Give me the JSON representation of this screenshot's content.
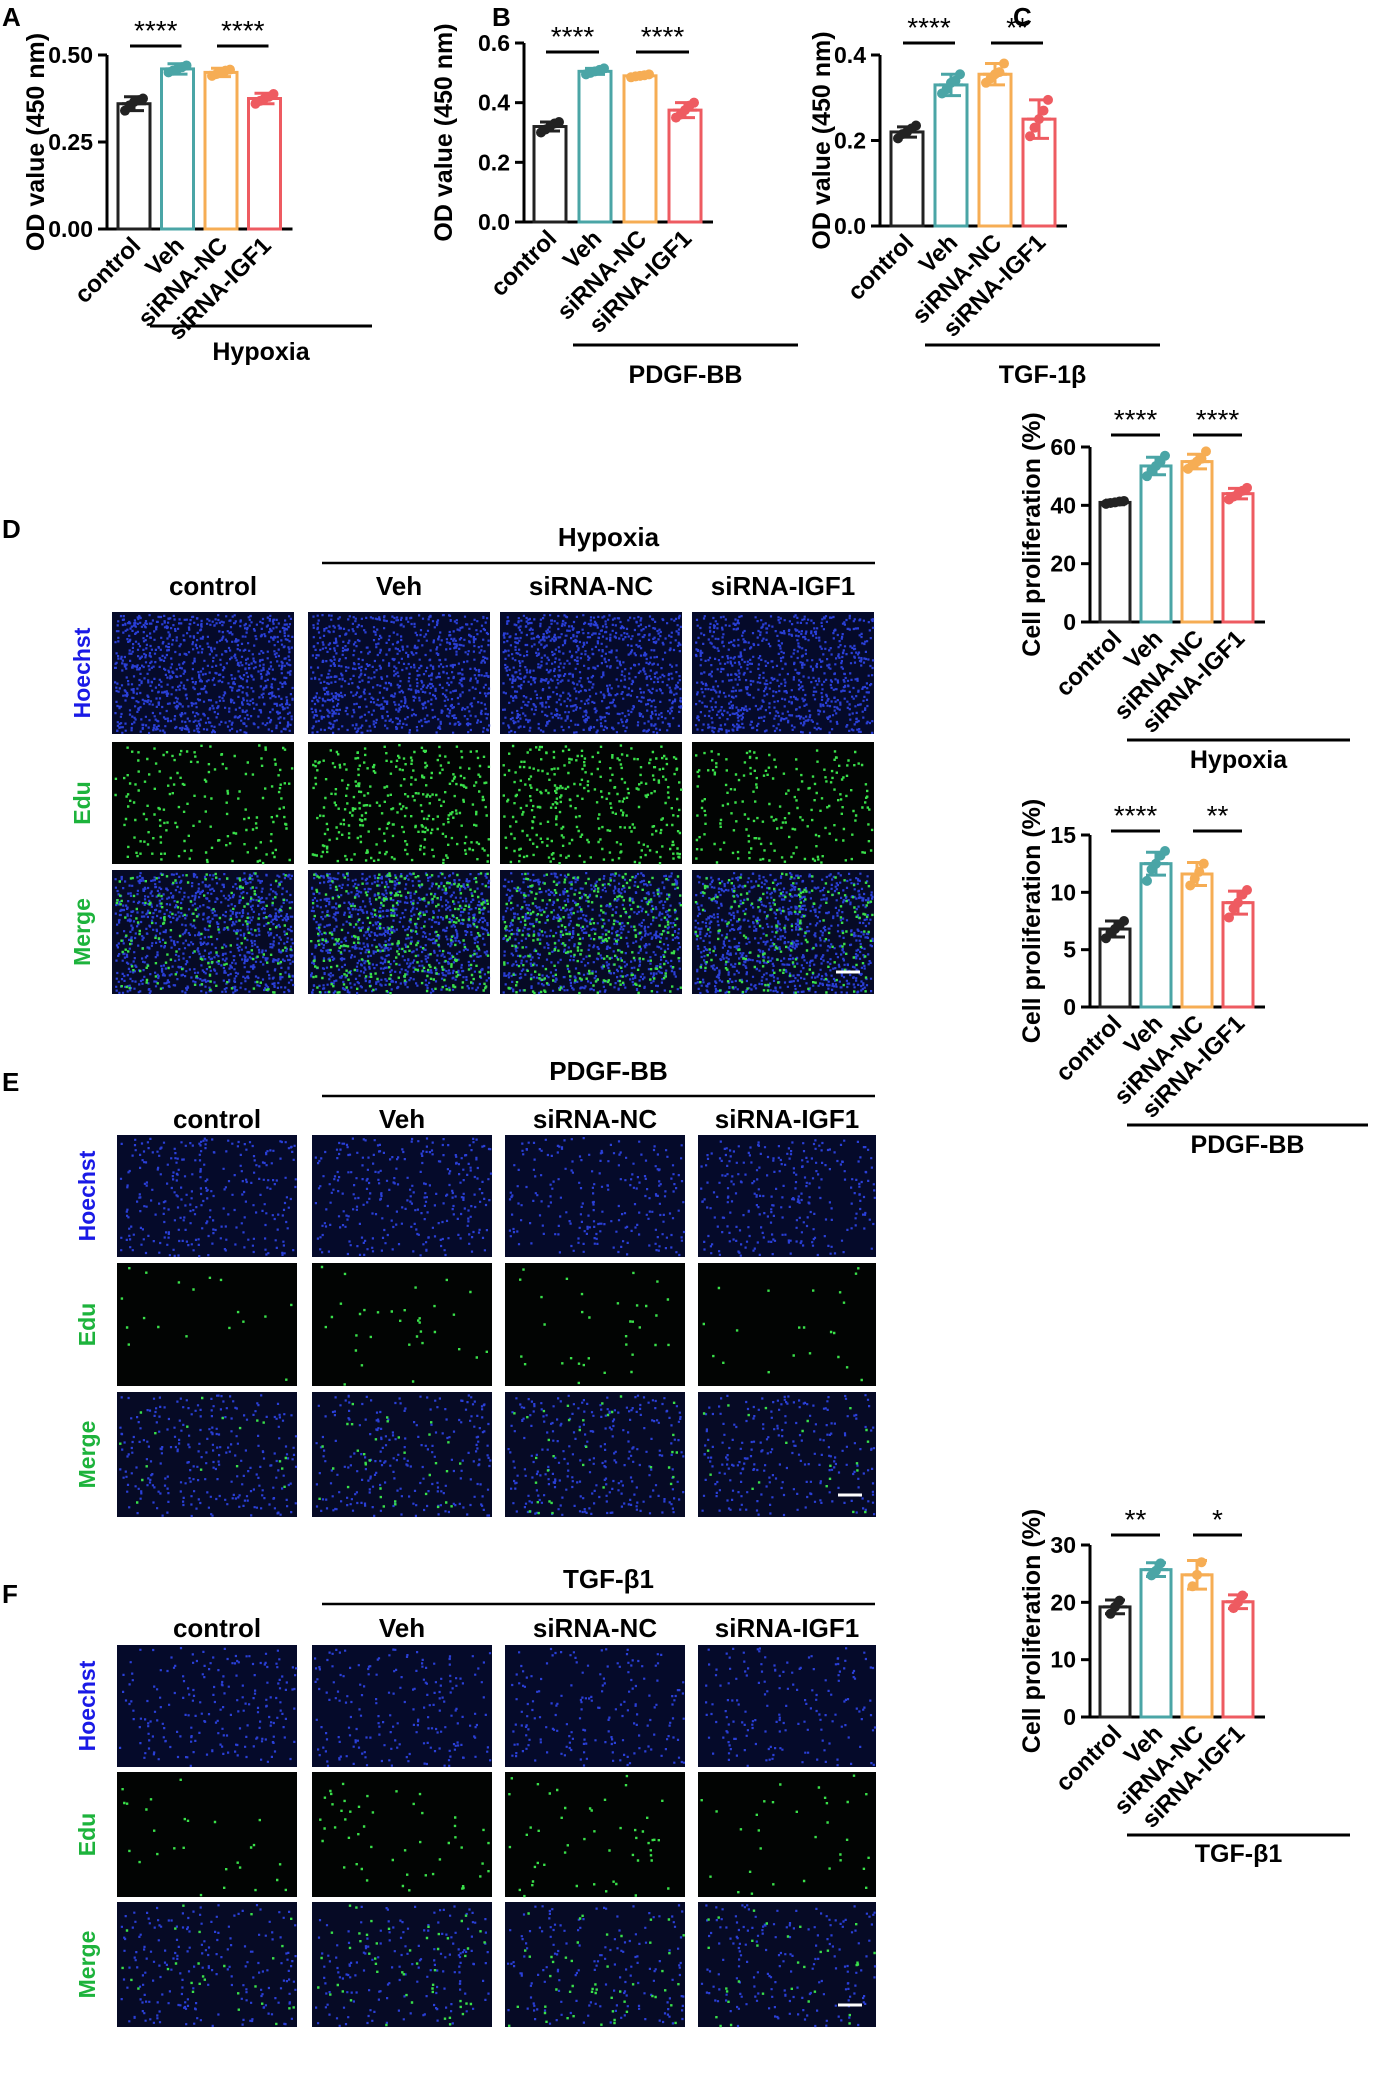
{
  "panels": {
    "A": "A",
    "B": "B",
    "C": "C",
    "D": "D",
    "E": "E",
    "F": "F"
  },
  "colors": {
    "control": "#222222",
    "Veh": "#4aa5a6",
    "siRNA-NC": "#f6ad54",
    "siRNA-IGF1": "#ee5b61",
    "hoechst_text": "#1a1ae6",
    "edu_text": "#1db33c"
  },
  "chart_data": [
    {
      "id": "A",
      "type": "bar",
      "categories": [
        "control",
        "Veh",
        "siRNA-NC",
        "siRNA-IGF1"
      ],
      "values": [
        0.36,
        0.46,
        0.45,
        0.375
      ],
      "errors": [
        0.02,
        0.015,
        0.012,
        0.015
      ],
      "points": [
        [
          0.34,
          0.355,
          0.365,
          0.37,
          0.375
        ],
        [
          0.45,
          0.455,
          0.46,
          0.465,
          0.47
        ],
        [
          0.44,
          0.445,
          0.45,
          0.455,
          0.458
        ],
        [
          0.36,
          0.368,
          0.375,
          0.38,
          0.388
        ]
      ],
      "ylabel": "OD value (450 nm)",
      "ylim": [
        0,
        0.5
      ],
      "yticks": [
        "0.00",
        "0.25",
        "0.50"
      ],
      "ytick_values": [
        0,
        0.25,
        0.5
      ],
      "group_label": "Hypoxia",
      "significance": [
        {
          "from": 0,
          "to": 1,
          "label": "****"
        },
        {
          "from": 2,
          "to": 3,
          "label": "****"
        }
      ]
    },
    {
      "id": "B",
      "type": "bar",
      "categories": [
        "control",
        "Veh",
        "siRNA-NC",
        "siRNA-IGF1"
      ],
      "values": [
        0.32,
        0.505,
        0.49,
        0.375
      ],
      "errors": [
        0.015,
        0.01,
        0.005,
        0.025
      ],
      "points": [
        [
          0.3,
          0.31,
          0.32,
          0.33,
          0.335
        ],
        [
          0.495,
          0.5,
          0.505,
          0.51,
          0.515
        ],
        [
          0.485,
          0.488,
          0.49,
          0.492,
          0.495
        ],
        [
          0.35,
          0.36,
          0.375,
          0.39,
          0.4
        ]
      ],
      "ylabel": "OD value (450 nm)",
      "ylim": [
        0,
        0.6
      ],
      "yticks": [
        "0.0",
        "0.2",
        "0.4",
        "0.6"
      ],
      "ytick_values": [
        0,
        0.2,
        0.4,
        0.6
      ],
      "group_label": "PDGF-BB",
      "significance": [
        {
          "from": 0,
          "to": 1,
          "label": "****"
        },
        {
          "from": 2,
          "to": 3,
          "label": "****"
        }
      ]
    },
    {
      "id": "C",
      "type": "bar",
      "categories": [
        "control",
        "Veh",
        "siRNA-NC",
        "siRNA-IGF1"
      ],
      "values": [
        0.22,
        0.33,
        0.355,
        0.25
      ],
      "errors": [
        0.012,
        0.025,
        0.025,
        0.045
      ],
      "points": [
        [
          0.205,
          0.215,
          0.22,
          0.228,
          0.235
        ],
        [
          0.31,
          0.32,
          0.335,
          0.34,
          0.355
        ],
        [
          0.335,
          0.345,
          0.355,
          0.36,
          0.38
        ],
        [
          0.21,
          0.23,
          0.25,
          0.27,
          0.295
        ]
      ],
      "ylabel": "OD value (450 nm)",
      "ylim": [
        0,
        0.4
      ],
      "yticks": [
        "0.0",
        "0.2",
        "0.4"
      ],
      "ytick_values": [
        0,
        0.2,
        0.4
      ],
      "group_label": "TGF-1β",
      "significance": [
        {
          "from": 0,
          "to": 1,
          "label": "****"
        },
        {
          "from": 2,
          "to": 3,
          "label": "**"
        }
      ]
    },
    {
      "id": "D",
      "type": "bar",
      "categories": [
        "control",
        "Veh",
        "siRNA-NC",
        "siRNA-IGF1"
      ],
      "values": [
        41,
        53.5,
        55,
        44
      ],
      "errors": [
        0.8,
        3,
        2.5,
        1.8
      ],
      "points": [
        [
          40.5,
          40.8,
          41,
          41.3,
          41.5
        ],
        [
          50,
          52,
          53.5,
          55,
          57
        ],
        [
          52.5,
          54,
          55,
          56,
          58.5
        ],
        [
          42,
          43,
          44,
          45,
          46
        ]
      ],
      "ylabel": "Cell proliferation (%)",
      "ylim": [
        0,
        60
      ],
      "yticks": [
        "0",
        "20",
        "40",
        "60"
      ],
      "ytick_values": [
        0,
        20,
        40,
        60
      ],
      "group_label": "Hypoxia",
      "significance": [
        {
          "from": 0,
          "to": 1,
          "label": "****"
        },
        {
          "from": 2,
          "to": 3,
          "label": "****"
        }
      ]
    },
    {
      "id": "E",
      "type": "bar",
      "categories": [
        "control",
        "Veh",
        "siRNA-NC",
        "siRNA-IGF1"
      ],
      "values": [
        6.8,
        12.5,
        11.6,
        9.1
      ],
      "errors": [
        0.7,
        1,
        1,
        1
      ],
      "points": [
        [
          6,
          6.5,
          6.8,
          7.1,
          7.5
        ],
        [
          11,
          12,
          12.5,
          13.2,
          13.6
        ],
        [
          10.6,
          11.2,
          11.8,
          12.5
        ],
        [
          7.8,
          8.6,
          9.1,
          9.8,
          10.2
        ]
      ],
      "ylabel": "Cell proliferation (%)",
      "ylim": [
        0,
        15
      ],
      "yticks": [
        "0",
        "5",
        "10",
        "15"
      ],
      "ytick_values": [
        0,
        5,
        10,
        15
      ],
      "group_label": "PDGF-BB",
      "significance": [
        {
          "from": 0,
          "to": 1,
          "label": "****"
        },
        {
          "from": 2,
          "to": 3,
          "label": "**"
        }
      ]
    },
    {
      "id": "F",
      "type": "bar",
      "categories": [
        "control",
        "Veh",
        "siRNA-NC",
        "siRNA-IGF1"
      ],
      "values": [
        19.2,
        25.7,
        24.8,
        20.1
      ],
      "errors": [
        1.2,
        1.2,
        2.5,
        1.2
      ],
      "points": [
        [
          18,
          19.2,
          20.3
        ],
        [
          24.7,
          25.5,
          26.8
        ],
        [
          22.8,
          24.8,
          27
        ],
        [
          19,
          20,
          21.2
        ]
      ],
      "ylabel": "Cell proliferation (%)",
      "ylim": [
        0,
        30
      ],
      "yticks": [
        "0",
        "10",
        "20",
        "30"
      ],
      "ytick_values": [
        0,
        10,
        20,
        30
      ],
      "group_label": "TGF-β1",
      "significance": [
        {
          "from": 0,
          "to": 1,
          "label": "**"
        },
        {
          "from": 2,
          "to": 3,
          "label": "*"
        }
      ]
    }
  ],
  "micrographs": [
    {
      "panel": "D",
      "group_label": "Hypoxia",
      "columns": [
        "control",
        "Veh",
        "siRNA-NC",
        "siRNA-IGF1"
      ],
      "rows": [
        "Hoechst",
        "Edu",
        "Merge"
      ]
    },
    {
      "panel": "E",
      "group_label": "PDGF-BB",
      "columns": [
        "control",
        "Veh",
        "siRNA-NC",
        "siRNA-IGF1"
      ],
      "rows": [
        "Hoechst",
        "Edu",
        "Merge"
      ]
    },
    {
      "panel": "F",
      "group_label": "TGF-β1",
      "columns": [
        "control",
        "Veh",
        "siRNA-NC",
        "siRNA-IGF1"
      ],
      "rows": [
        "Hoechst",
        "Edu",
        "Merge"
      ]
    }
  ]
}
